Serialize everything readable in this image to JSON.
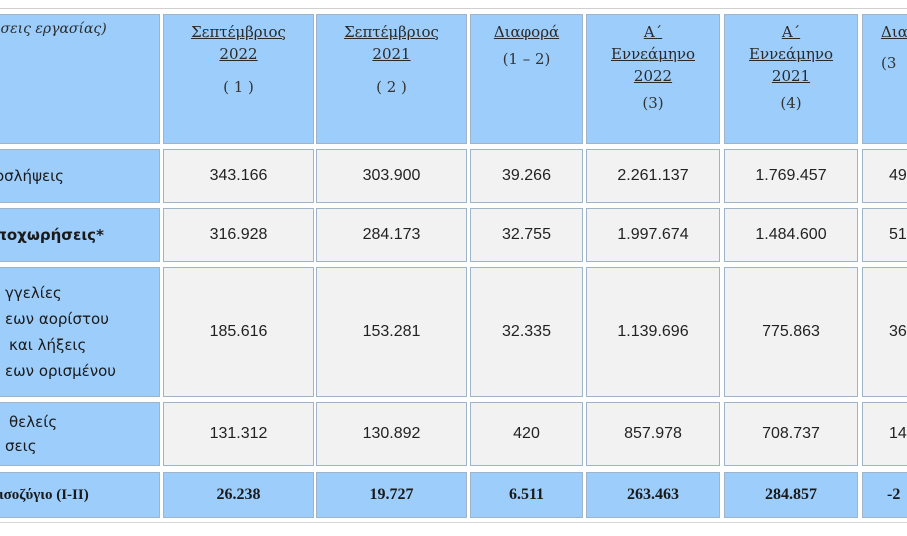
{
  "header": {
    "first_col": "έσεις εργασίας)",
    "cols": [
      {
        "l1": "Σεπτέμβριος",
        "l2": "2022",
        "sub": "( 1 )"
      },
      {
        "l1": "Σεπτέμβριος",
        "l2": "2021",
        "sub": "( 2 )"
      },
      {
        "l1": "Διαφορά",
        "sub": "(1 – 2)"
      },
      {
        "l1": "Α΄",
        "l2": "Εννεάμηνο",
        "l3": "2022",
        "sub": "(3)"
      },
      {
        "l1": "Α΄",
        "l2": "Εννεάμηνο",
        "l3": "2021",
        "sub": "(4)"
      },
      {
        "l1": "Δια",
        "sub": "(3"
      }
    ]
  },
  "rows": [
    {
      "label": [
        "οσλήψεις"
      ],
      "bold": false,
      "values": [
        "343.166",
        "303.900",
        "39.266",
        "2.261.137",
        "1.769.457",
        "49"
      ]
    },
    {
      "label": [
        "ποχωρήσεις*"
      ],
      "bold": true,
      "values": [
        "316.928",
        "284.173",
        "32.755",
        "1.997.674",
        "1.484.600",
        "51"
      ]
    },
    {
      "label": [
        "γγελίες",
        "εων αορίστου",
        "και λήξεις",
        "εων ορισμένου"
      ],
      "bold": false,
      "values": [
        "185.616",
        "153.281",
        "32.335",
        "1.139.696",
        "775.863",
        "36"
      ]
    },
    {
      "label": [
        "θελείς",
        "σεις"
      ],
      "bold": false,
      "values": [
        "131.312",
        "130.892",
        "420",
        "857.978",
        "708.737",
        "14"
      ]
    }
  ],
  "sum_row": {
    "label": "ισοζύγιο (I-II)",
    "values": [
      "26.238",
      "19.727",
      "6.511",
      "263.463",
      "284.857",
      "-2"
    ]
  }
}
